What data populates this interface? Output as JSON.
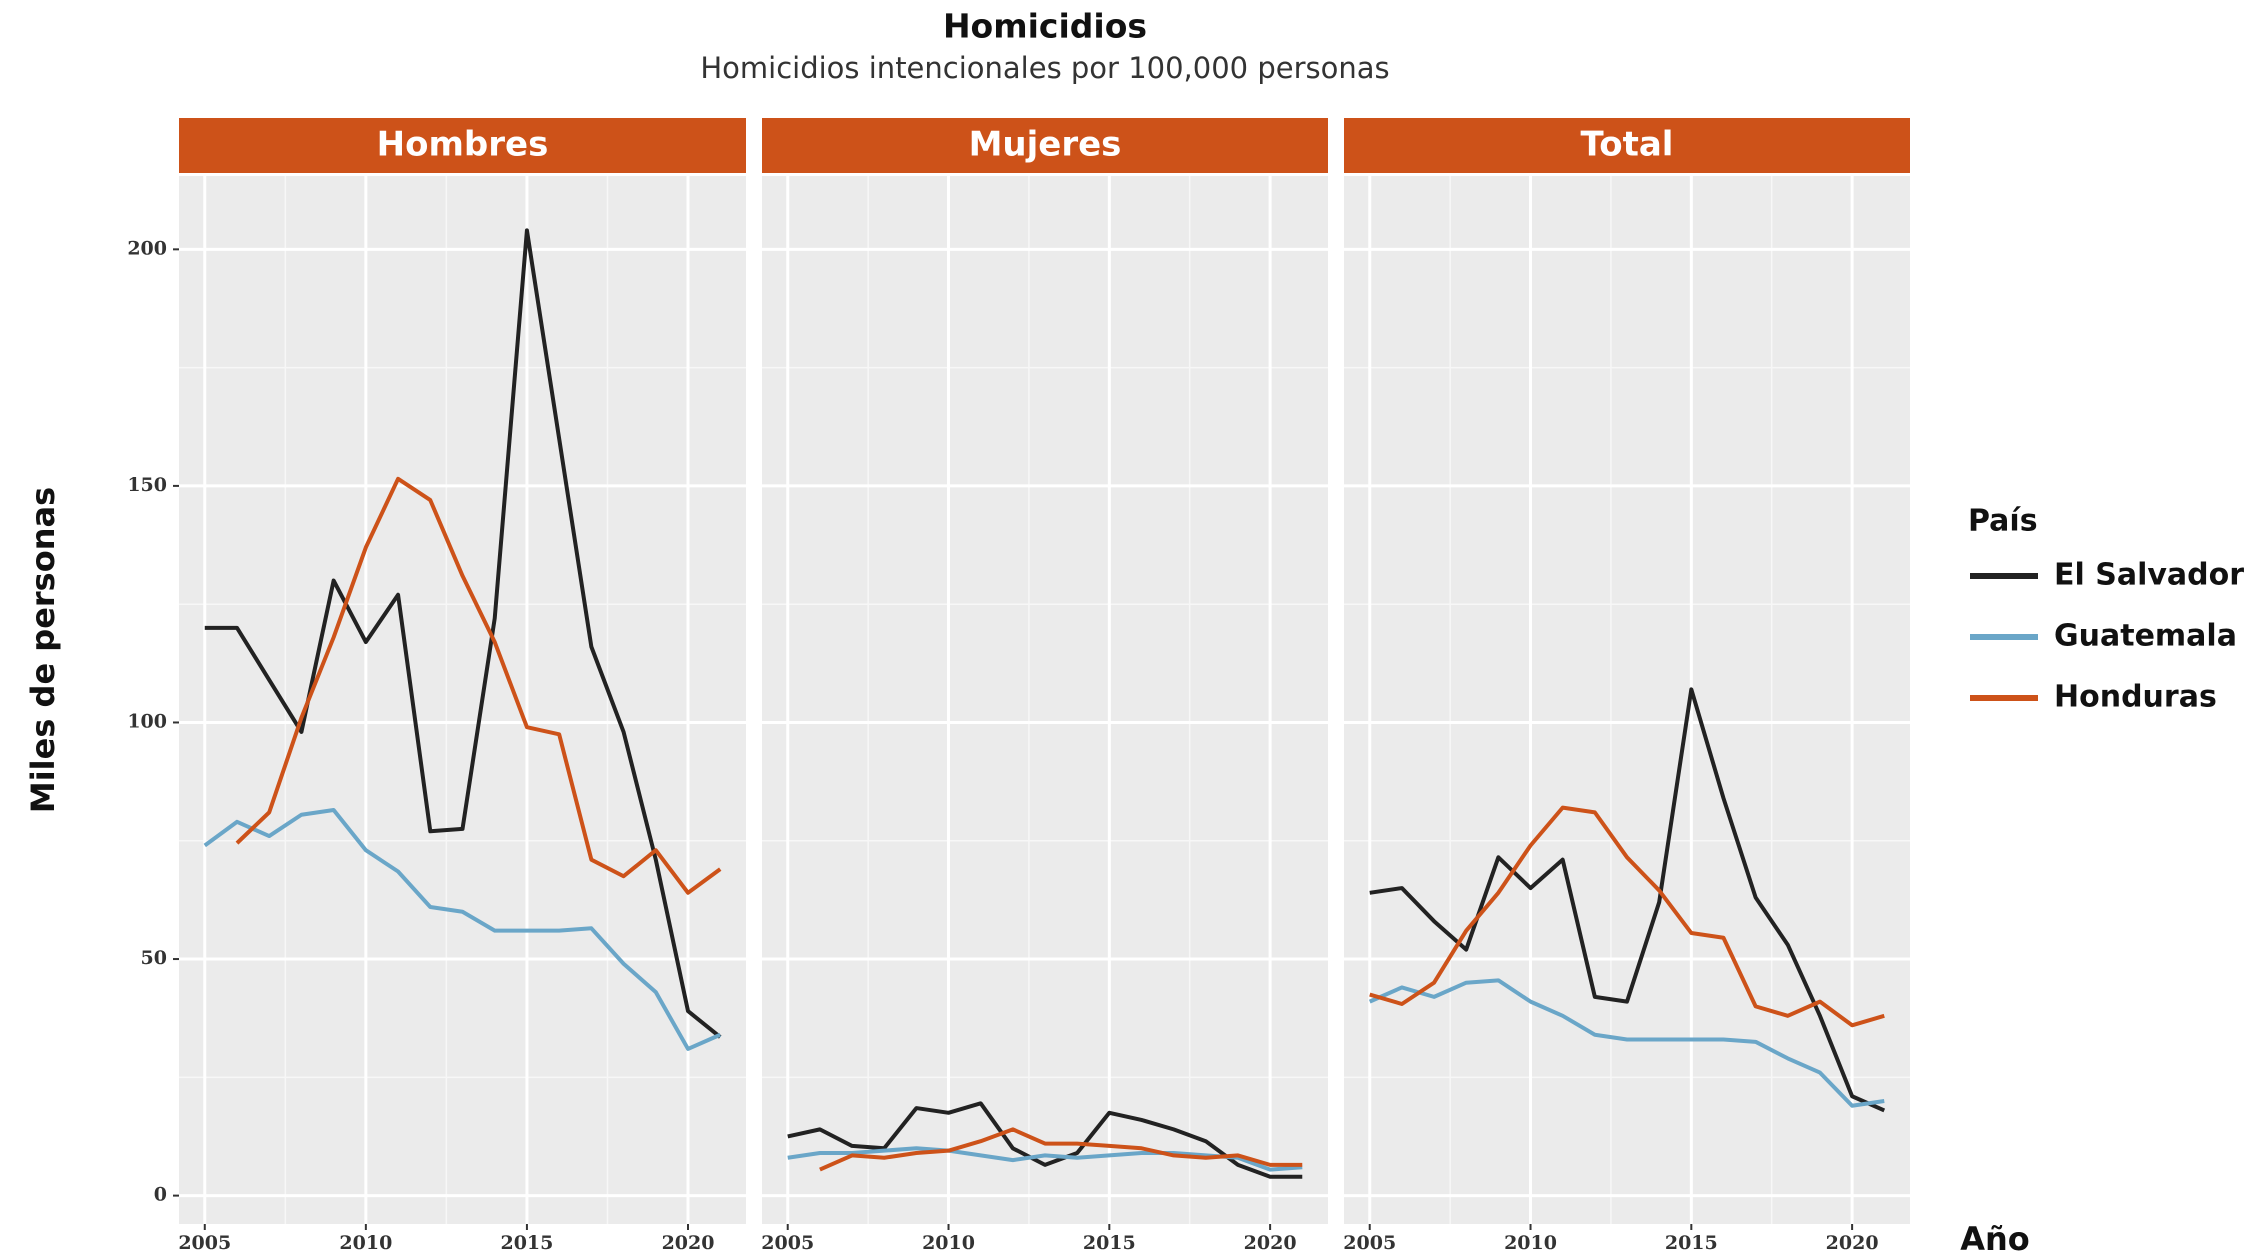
{
  "title": "Homicidios",
  "subtitle": "Homicidios intencionales por 100,000 personas",
  "y_label": "Miles de personas",
  "x_label": "Año",
  "legend_title": "País",
  "chart_data": [
    {
      "type": "line",
      "title": "Hombres",
      "x": [
        2005,
        2006,
        2007,
        2008,
        2009,
        2010,
        2011,
        2012,
        2013,
        2014,
        2015,
        2016,
        2017,
        2018,
        2019,
        2020,
        2021
      ],
      "series": [
        {
          "name": "El Salvador",
          "color": "#222222",
          "values": [
            120,
            120,
            109,
            98,
            130,
            117,
            127,
            77,
            77.5,
            122,
            204,
            160,
            116,
            98,
            71,
            39,
            33.5
          ]
        },
        {
          "name": "Guatemala",
          "color": "#6aa6c8",
          "values": [
            74,
            79,
            76,
            80.5,
            81.5,
            73,
            68.5,
            61,
            60,
            56,
            56,
            56,
            56.5,
            49,
            43,
            31,
            34
          ]
        },
        {
          "name": "Honduras",
          "color": "#cd5219",
          "values": [
            null,
            74.5,
            81,
            101,
            118,
            137,
            151.5,
            147,
            131,
            117,
            99,
            97.5,
            71,
            67.5,
            73,
            64,
            69
          ]
        }
      ],
      "xlim": [
        2004.2,
        2021.8
      ],
      "xticks": [
        2005,
        2010,
        2015,
        2020
      ],
      "ylim": [
        -6,
        215.5
      ],
      "yticks": [
        0,
        50,
        100,
        150,
        200
      ],
      "grid": true
    },
    {
      "type": "line",
      "title": "Mujeres",
      "x": [
        2005,
        2006,
        2007,
        2008,
        2009,
        2010,
        2011,
        2012,
        2013,
        2014,
        2015,
        2016,
        2017,
        2018,
        2019,
        2020,
        2021
      ],
      "series": [
        {
          "name": "El Salvador",
          "color": "#222222",
          "values": [
            12.5,
            14,
            10.5,
            10,
            18.5,
            17.5,
            19.5,
            10,
            6.5,
            9,
            17.5,
            16,
            14,
            11.5,
            6.5,
            4,
            4
          ]
        },
        {
          "name": "Guatemala",
          "color": "#6aa6c8",
          "values": [
            8,
            9,
            9,
            9.5,
            10,
            9.5,
            8.5,
            7.5,
            8.5,
            8,
            8.5,
            9,
            9,
            8.5,
            8,
            5.5,
            6
          ]
        },
        {
          "name": "Honduras",
          "color": "#cd5219",
          "values": [
            null,
            5.5,
            8.5,
            8,
            9,
            9.5,
            11.5,
            14,
            11,
            11,
            10.5,
            10,
            8.5,
            8,
            8.5,
            6.5,
            6.5
          ]
        }
      ],
      "xlim": [
        2004.2,
        2021.8
      ],
      "xticks": [
        2005,
        2010,
        2015,
        2020
      ],
      "ylim": [
        -6,
        215.5
      ],
      "yticks": [
        0,
        50,
        100,
        150,
        200
      ],
      "grid": true
    },
    {
      "type": "line",
      "title": "Total",
      "x": [
        2005,
        2006,
        2007,
        2008,
        2009,
        2010,
        2011,
        2012,
        2013,
        2014,
        2015,
        2016,
        2017,
        2018,
        2019,
        2020,
        2021
      ],
      "series": [
        {
          "name": "El Salvador",
          "color": "#222222",
          "values": [
            64,
            65,
            58,
            52,
            71.5,
            65,
            71,
            42,
            41,
            62,
            107,
            84,
            63,
            53,
            38,
            21,
            18
          ]
        },
        {
          "name": "Guatemala",
          "color": "#6aa6c8",
          "values": [
            41,
            44,
            42,
            45,
            45.5,
            41,
            38,
            34,
            33,
            33,
            33,
            33,
            32.5,
            29,
            26,
            19,
            20
          ]
        },
        {
          "name": "Honduras",
          "color": "#cd5219",
          "values": [
            42.5,
            40.5,
            45,
            56,
            64,
            74,
            82,
            81,
            71.5,
            64.5,
            55.5,
            54.5,
            40,
            38,
            41,
            36,
            38
          ]
        }
      ],
      "xlim": [
        2004.2,
        2021.8
      ],
      "xticks": [
        2005,
        2010,
        2015,
        2020
      ],
      "ylim": [
        -6,
        215.5
      ],
      "yticks": [
        0,
        50,
        100,
        150,
        200
      ],
      "grid": true
    }
  ]
}
